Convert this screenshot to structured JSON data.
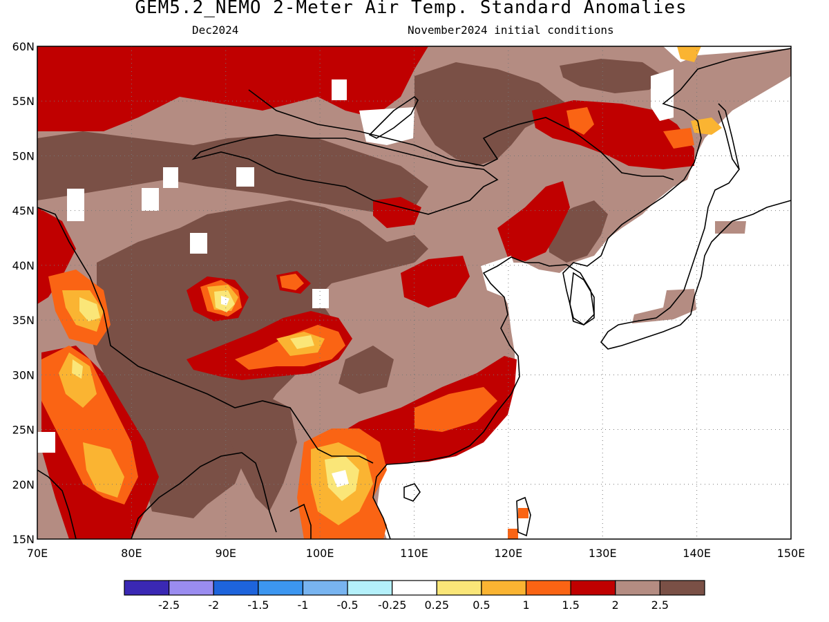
{
  "header": {
    "title": "GEM5.2_NEMO 2-Meter Air Temp. Standard Anomalies",
    "target_month": "Dec2024",
    "init_conditions": "November2024 initial conditions"
  },
  "map": {
    "region": {
      "lon_min": 70,
      "lon_max": 150,
      "lat_min": 15,
      "lat_max": 60
    },
    "lat_ticks": [
      {
        "value": 60,
        "label": "60N"
      },
      {
        "value": 55,
        "label": "55N"
      },
      {
        "value": 50,
        "label": "50N"
      },
      {
        "value": 45,
        "label": "45N"
      },
      {
        "value": 40,
        "label": "40N"
      },
      {
        "value": 35,
        "label": "35N"
      },
      {
        "value": 30,
        "label": "30N"
      },
      {
        "value": 25,
        "label": "25N"
      },
      {
        "value": 20,
        "label": "20N"
      },
      {
        "value": 15,
        "label": "15N"
      }
    ],
    "lon_ticks": [
      {
        "value": 70,
        "label": "70E"
      },
      {
        "value": 80,
        "label": "80E"
      },
      {
        "value": 90,
        "label": "90E"
      },
      {
        "value": 100,
        "label": "100E"
      },
      {
        "value": 110,
        "label": "110E"
      },
      {
        "value": 120,
        "label": "120E"
      },
      {
        "value": 130,
        "label": "130E"
      },
      {
        "value": 140,
        "label": "140E"
      },
      {
        "value": 150,
        "label": "150E"
      }
    ],
    "grid": "dotted",
    "background": "#ffffff"
  },
  "colorbar": {
    "colors": [
      "#3a28b4",
      "#9a8cf0",
      "#1e64dc",
      "#3c96f0",
      "#78b4f0",
      "#b4f0fa",
      "#ffffff",
      "#fae678",
      "#fab432",
      "#fa6414",
      "#c00000",
      "#b48c82",
      "#7a5046"
    ],
    "labels": [
      "-2.5",
      "-2",
      "-1.5",
      "-1",
      "-0.5",
      "-0.25",
      "0.25",
      "0.5",
      "1",
      "1.5",
      "2",
      "2.5"
    ]
  }
}
